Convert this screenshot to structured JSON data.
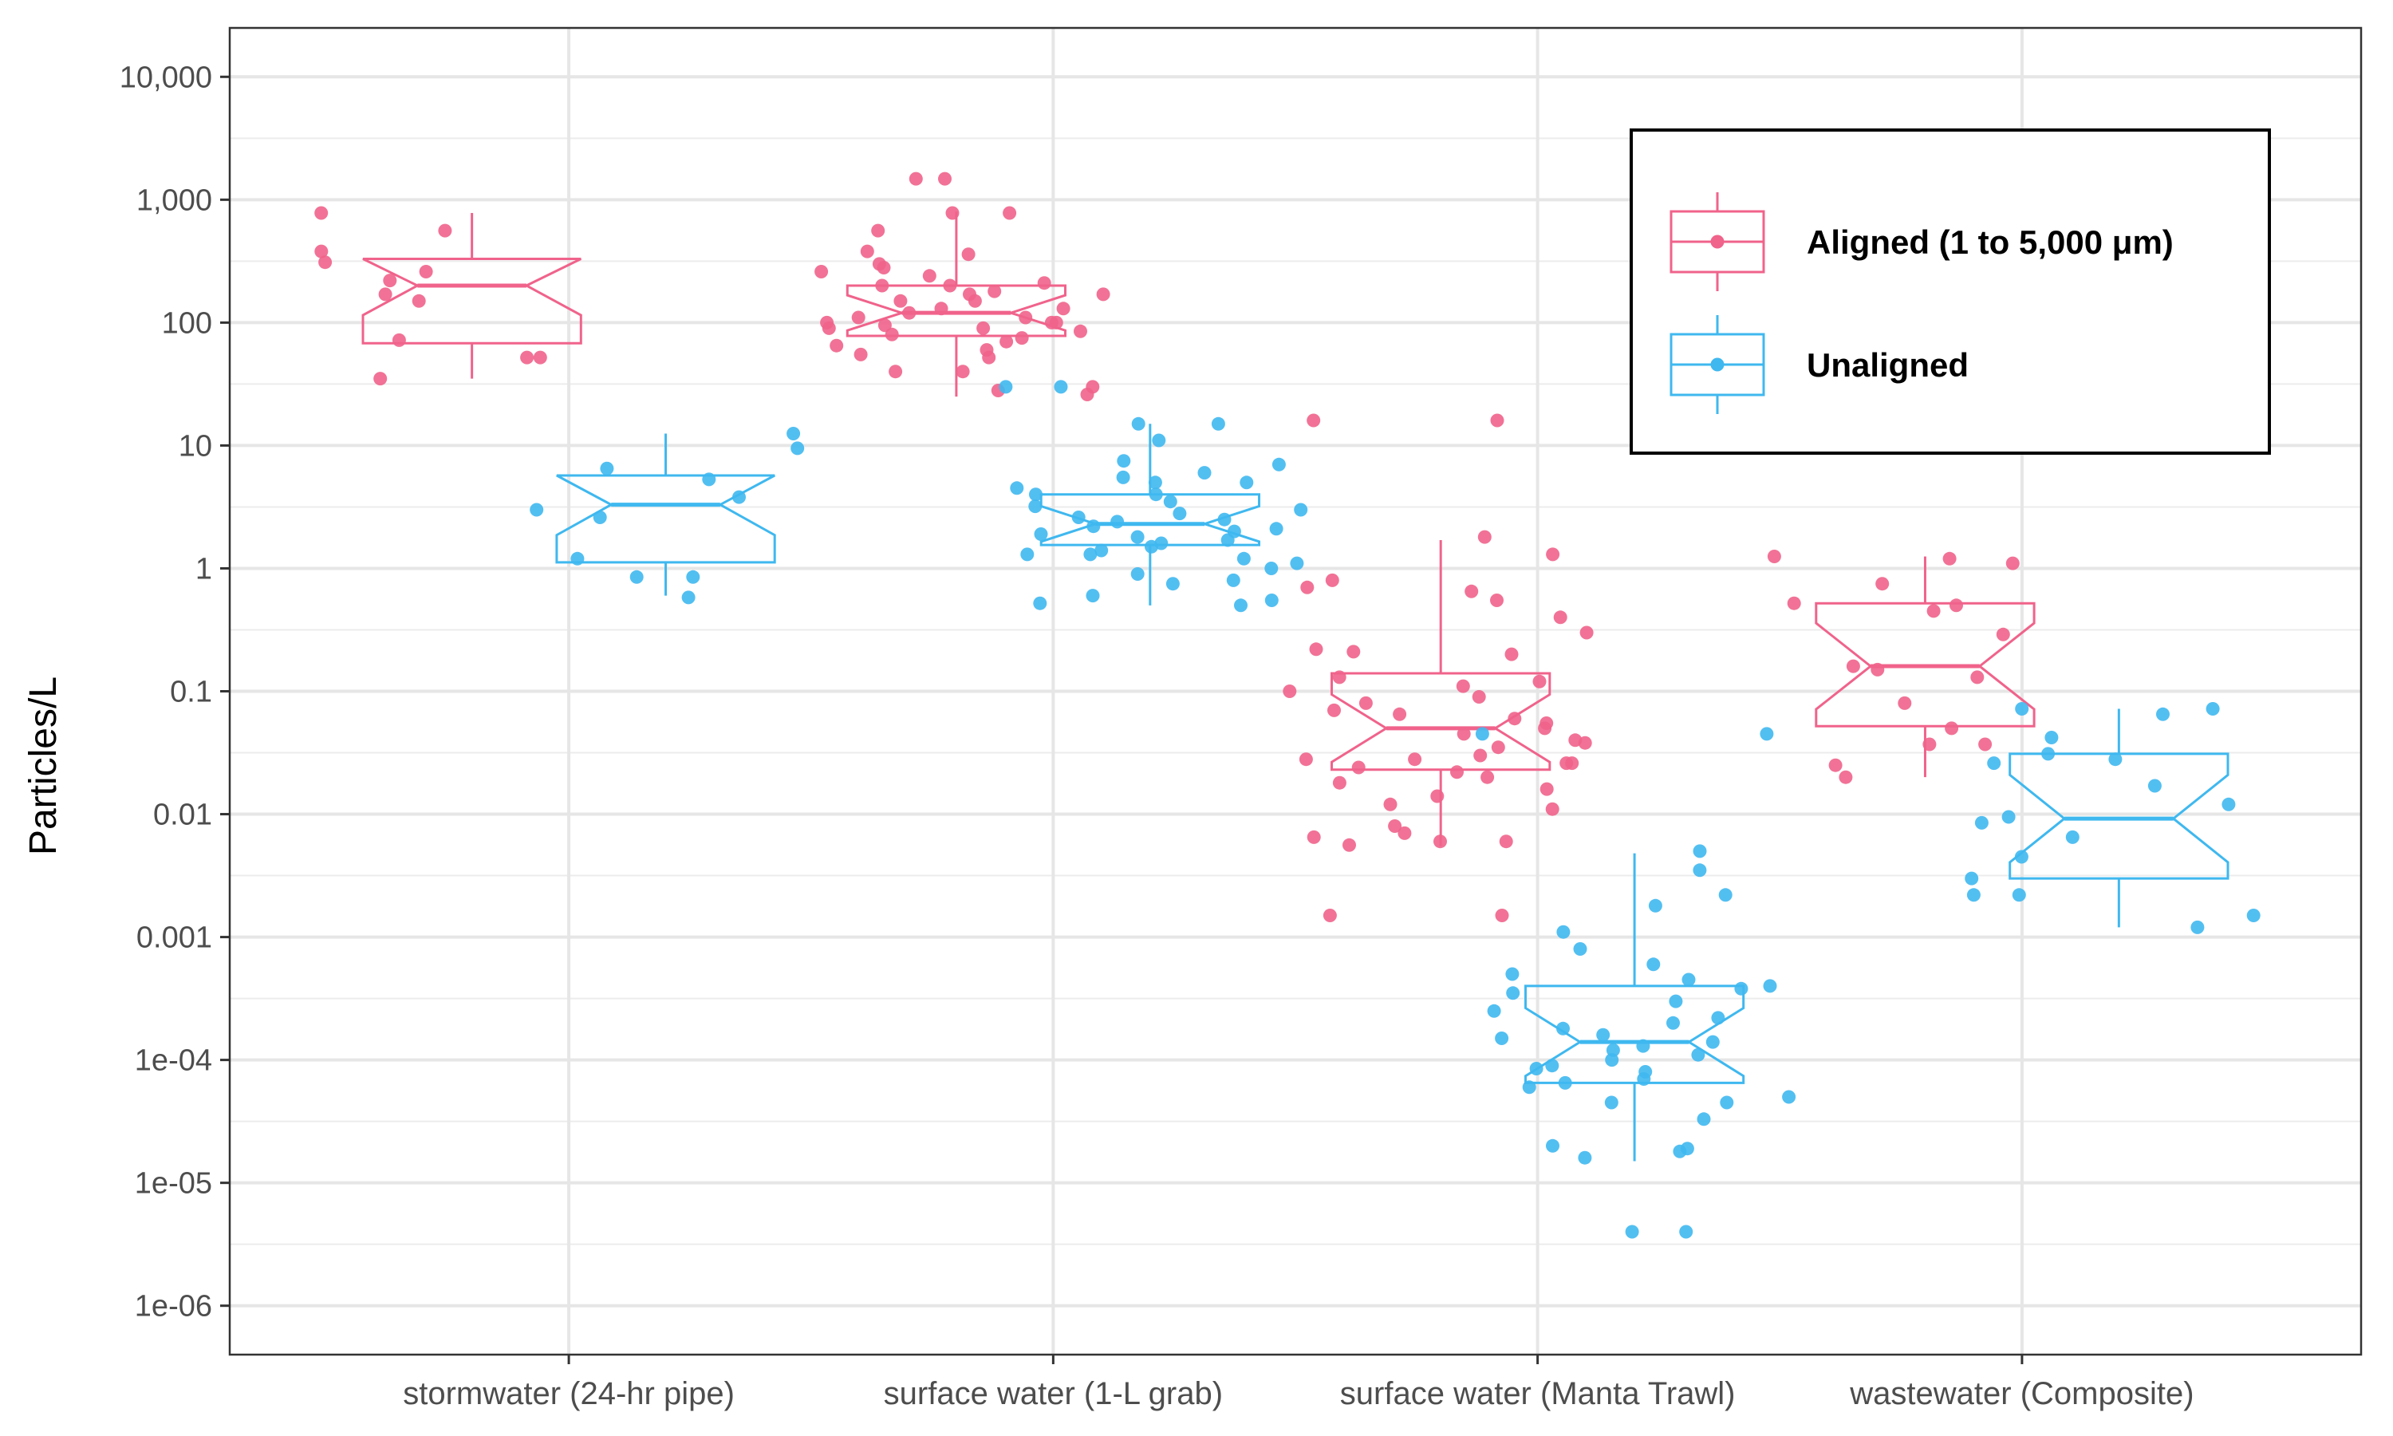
{
  "chart_data": {
    "type": "boxplot",
    "ylabel": "Particles/L",
    "xlabel": "",
    "yscale": "log10",
    "ylim": [
      4e-07,
      25000
    ],
    "y_ticks": [
      {
        "value": 10000,
        "label": "10,000"
      },
      {
        "value": 1000,
        "label": "1,000"
      },
      {
        "value": 100,
        "label": "100"
      },
      {
        "value": 10,
        "label": "10"
      },
      {
        "value": 1,
        "label": "1"
      },
      {
        "value": 0.1,
        "label": "0.1"
      },
      {
        "value": 0.01,
        "label": "0.01"
      },
      {
        "value": 0.001,
        "label": "0.001"
      },
      {
        "value": 0.0001,
        "label": "1e-04"
      },
      {
        "value": 1e-05,
        "label": "1e-05"
      },
      {
        "value": 1e-06,
        "label": "1e-06"
      }
    ],
    "grid": true,
    "notched": true,
    "legend_position": "top-right",
    "categories": [
      "stormwater (24-hr pipe)",
      "surface water (1-L grab)",
      "surface water (Manta Trawl)",
      "wastewater (Composite)"
    ],
    "series": [
      {
        "name": "Aligned (1 to 5,000 μm)",
        "color": "#f0638b",
        "boxes": [
          {
            "min": 35,
            "q1": 68,
            "median": 200,
            "q3": 330,
            "max": 780
          },
          {
            "min": 25,
            "q1": 78,
            "median": 120,
            "q3": 200,
            "max": 800
          },
          {
            "min": 0.0055,
            "q1": 0.023,
            "median": 0.05,
            "q3": 0.14,
            "max": 1.7
          },
          {
            "min": 0.02,
            "q1": 0.052,
            "median": 0.16,
            "q3": 0.52,
            "max": 1.25
          }
        ],
        "points": [
          [
            560,
            780,
            260,
            170,
            72,
            35,
            52,
            380,
            310,
            150,
            52,
            220
          ],
          [
            1480,
            780,
            560,
            360,
            240,
            200,
            170,
            150,
            120,
            110,
            100,
            95,
            90,
            80,
            70,
            60,
            55,
            30,
            28,
            26,
            40,
            65,
            85,
            100,
            130,
            170,
            200,
            260,
            280,
            300,
            1480,
            780,
            380,
            210,
            180,
            150,
            110,
            90,
            75,
            52,
            40,
            100,
            130
          ],
          [
            16,
            16,
            1.3,
            1.8,
            0.8,
            0.7,
            0.65,
            0.55,
            0.4,
            0.3,
            0.22,
            0.2,
            0.13,
            0.12,
            0.1,
            0.09,
            0.08,
            0.07,
            0.06,
            0.05,
            0.045,
            0.04,
            0.038,
            0.035,
            0.03,
            0.028,
            0.026,
            0.024,
            0.022,
            0.02,
            0.018,
            0.016,
            0.012,
            0.011,
            0.008,
            0.007,
            0.006,
            0.006,
            0.0056,
            0.0015,
            0.0015,
            0.21,
            0.11,
            0.065,
            0.055,
            0.028,
            0.026,
            0.014,
            0.0065
          ],
          [
            1.1,
            1.2,
            1.25,
            0.75,
            0.45,
            0.5,
            0.52,
            0.29,
            0.16,
            0.15,
            0.13,
            0.08,
            0.05,
            0.037,
            0.037,
            0.025,
            0.02
          ]
        ]
      },
      {
        "name": "Unaligned",
        "color": "#3fb8ef",
        "boxes": [
          {
            "min": 0.6,
            "q1": 1.12,
            "median": 3.3,
            "q3": 5.7,
            "max": 12.5
          },
          {
            "min": 0.5,
            "q1": 1.55,
            "median": 2.3,
            "q3": 4.0,
            "max": 15
          },
          {
            "min": 1.5e-05,
            "q1": 6.5e-05,
            "median": 0.00014,
            "q3": 0.0004,
            "max": 0.0048
          },
          {
            "min": 0.0012,
            "q1": 0.003,
            "median": 0.0092,
            "q3": 0.031,
            "max": 0.072
          }
        ],
        "points": [
          [
            9.5,
            5.3,
            3.8,
            3.0,
            2.6,
            0.85,
            0.85,
            0.58,
            1.2,
            6.5,
            12.5
          ],
          [
            30,
            30,
            15,
            15,
            11,
            7.5,
            7.0,
            6.0,
            5.5,
            5.0,
            4.5,
            4.0,
            3.5,
            3.2,
            3.0,
            2.8,
            2.6,
            2.4,
            2.2,
            2.1,
            2.0,
            1.9,
            1.8,
            1.6,
            1.5,
            1.4,
            1.3,
            1.2,
            1.1,
            1.0,
            0.9,
            0.8,
            0.6,
            0.55,
            0.52,
            0.5,
            5.0,
            4.0,
            2.5,
            1.7,
            1.3,
            0.75
          ],
          [
            0.045,
            0.045,
            0.005,
            0.0035,
            0.0022,
            0.0018,
            0.0011,
            0.0008,
            0.0006,
            0.0005,
            0.0004,
            0.00035,
            0.0003,
            0.00025,
            0.0002,
            0.00018,
            0.00015,
            0.00013,
            0.00012,
            0.0001,
            9e-05,
            8e-05,
            7e-05,
            6e-05,
            5e-05,
            4.5e-05,
            3.3e-05,
            2e-05,
            1.8e-05,
            1.6e-05,
            4e-06,
            4e-06,
            4.5e-05,
            0.00011,
            0.00014,
            0.00016,
            0.00022,
            0.00038,
            0.00045,
            6.5e-05,
            8.5e-05,
            1.9e-05
          ],
          [
            0.065,
            0.072,
            0.072,
            0.042,
            0.031,
            0.028,
            0.017,
            0.012,
            0.0095,
            0.0085,
            0.0065,
            0.0045,
            0.003,
            0.0022,
            0.0022,
            0.0015,
            0.0012,
            0.026
          ]
        ]
      }
    ]
  },
  "legend": {
    "items": [
      {
        "label": "Aligned (1 to 5,000 μm)",
        "color": "#f0638b"
      },
      {
        "label": "Unaligned",
        "color": "#3fb8ef"
      }
    ]
  }
}
